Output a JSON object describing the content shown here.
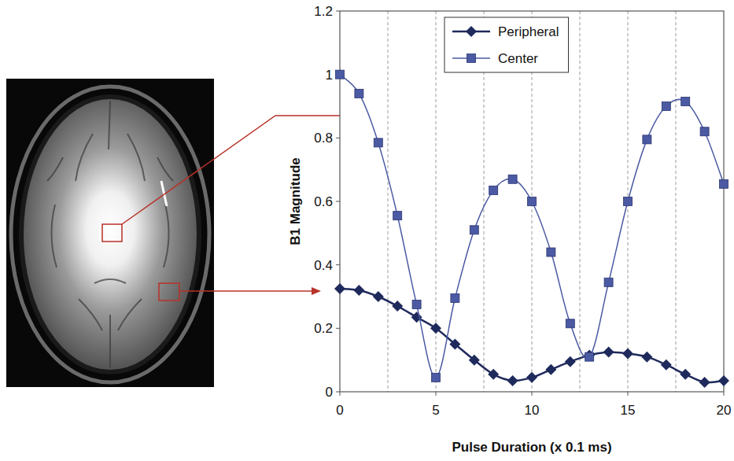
{
  "chart_data": {
    "type": "line",
    "x_label": "Pulse Duration (x 0.1 ms)",
    "y_label": "B1 Magnitude",
    "x": [
      0,
      1,
      2,
      3,
      4,
      5,
      6,
      7,
      8,
      9,
      10,
      11,
      12,
      13,
      14,
      15,
      16,
      17,
      18,
      19,
      20
    ],
    "series": [
      {
        "name": "Peripheral",
        "color": "#1f2a5c",
        "marker": "diamond",
        "line_style": "solid",
        "values": [
          0.325,
          0.32,
          0.3,
          0.27,
          0.235,
          0.2,
          0.15,
          0.1,
          0.055,
          0.035,
          0.045,
          0.07,
          0.095,
          0.115,
          0.125,
          0.12,
          0.11,
          0.085,
          0.055,
          0.03,
          0.035
        ]
      },
      {
        "name": "Center",
        "color": "#4b5aa3",
        "marker": "square",
        "line_style": "solid",
        "values": [
          1.0,
          0.94,
          0.785,
          0.555,
          0.275,
          0.045,
          0.295,
          0.51,
          0.635,
          0.67,
          0.6,
          0.44,
          0.215,
          0.11,
          0.345,
          0.6,
          0.795,
          0.9,
          0.915,
          0.82,
          0.655
        ]
      }
    ],
    "xlim": [
      0,
      20
    ],
    "ylim": [
      0,
      1.2
    ],
    "xticks": [
      0,
      5,
      10,
      15,
      20
    ],
    "yticks": [
      0,
      0.2,
      0.4,
      0.6,
      0.8,
      1,
      1.2
    ],
    "grid": true,
    "legend": "upper center"
  }
}
